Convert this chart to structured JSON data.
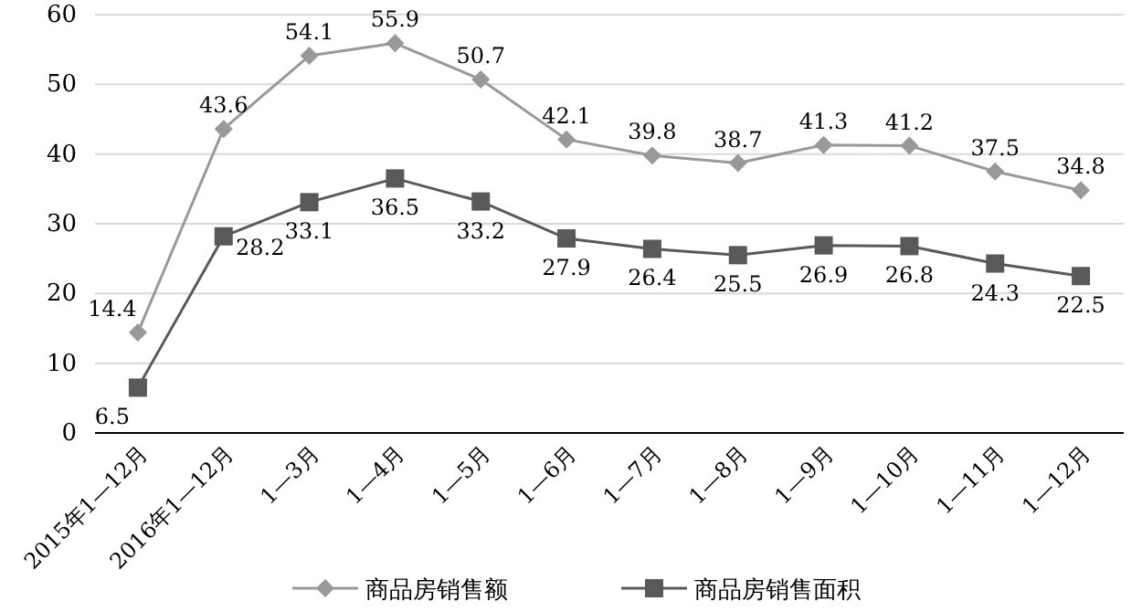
{
  "chart_data": {
    "type": "line",
    "categories": [
      "2015年1—12月",
      "2016年1—12月",
      "1—3月",
      "1—4月",
      "1—5月",
      "1—6月",
      "1—7月",
      "1—8月",
      "1—9月",
      "1—10月",
      "1—11月",
      "1—12月"
    ],
    "series": [
      {
        "name": "商品房销售额",
        "color": "#999999",
        "marker": "diamond",
        "values": [
          14.4,
          43.6,
          54.1,
          55.9,
          50.7,
          42.1,
          39.8,
          38.7,
          41.3,
          41.2,
          37.5,
          34.8
        ]
      },
      {
        "name": "商品房销售面积",
        "color": "#595959",
        "marker": "square",
        "values": [
          6.5,
          28.2,
          33.1,
          36.5,
          33.2,
          27.9,
          26.4,
          25.5,
          26.9,
          26.8,
          24.3,
          22.5
        ]
      }
    ],
    "ylim": [
      0,
      60
    ],
    "yticks": [
      0,
      10,
      20,
      30,
      40,
      50,
      60
    ],
    "grid": "y",
    "legend": "bottom",
    "data_labels": true,
    "line_style": "solid"
  }
}
